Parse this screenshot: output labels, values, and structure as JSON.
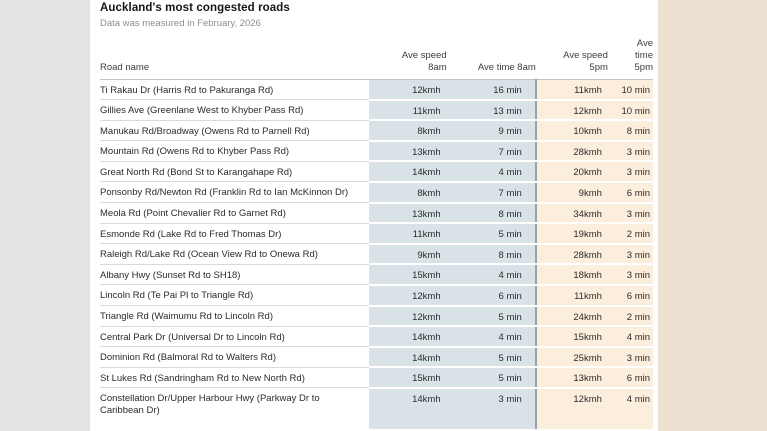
{
  "page": {
    "title": "Auckland's most congested roads",
    "subtitle": "Data was measured in February, 2026"
  },
  "headers": {
    "road": "Road name",
    "speed_8am": "Ave speed\n8am",
    "time_8am": "Ave time 8am",
    "speed_5pm": "Ave speed\n5pm",
    "time_5pm": "Ave\ntime\n5pm"
  },
  "colors": {
    "morning_column_bg": "#d9e3e7",
    "evening_column_bg": "#fbeedd",
    "page_left_bg": "#e4e3e1",
    "page_right_bg": "#ece0d0",
    "group_divider": "#96a4aa"
  },
  "chart_data": {
    "type": "table",
    "title": "Auckland's most congested roads",
    "subtitle": "Data was measured in February, 2026",
    "columns": [
      "Road name",
      "Ave speed 8am",
      "Ave time 8am",
      "Ave speed 5pm",
      "Ave time 5pm"
    ],
    "rows": [
      {
        "road": "Ti Rakau Dr (Harris Rd to Pakuranga Rd)",
        "speed_8am": "12kmh",
        "time_8am": "16 min",
        "speed_5pm": "11kmh",
        "time_5pm": "10 min"
      },
      {
        "road": "Gillies Ave (Greenlane West to Khyber Pass Rd)",
        "speed_8am": "11kmh",
        "time_8am": "13 min",
        "speed_5pm": "12kmh",
        "time_5pm": "10 min"
      },
      {
        "road": "Manukau Rd/Broadway (Owens Rd to Parnell Rd)",
        "speed_8am": "8kmh",
        "time_8am": "9 min",
        "speed_5pm": "10kmh",
        "time_5pm": "8 min"
      },
      {
        "road": "Mountain Rd (Owens Rd to Khyber Pass Rd)",
        "speed_8am": "13kmh",
        "time_8am": "7 min",
        "speed_5pm": "28kmh",
        "time_5pm": "3 min"
      },
      {
        "road": "Great North Rd (Bond St to Karangahape Rd)",
        "speed_8am": "14kmh",
        "time_8am": "4 min",
        "speed_5pm": "20kmh",
        "time_5pm": "3 min"
      },
      {
        "road": "Ponsonby Rd/Newton Rd (Franklin Rd to Ian McKinnon Dr)",
        "speed_8am": "8kmh",
        "time_8am": "7 min",
        "speed_5pm": "9kmh",
        "time_5pm": "6 min"
      },
      {
        "road": "Meola Rd (Point Chevalier Rd to Garnet Rd)",
        "speed_8am": "13kmh",
        "time_8am": "8 min",
        "speed_5pm": "34kmh",
        "time_5pm": "3 min"
      },
      {
        "road": "Esmonde Rd (Lake Rd to Fred Thomas Dr)",
        "speed_8am": "11kmh",
        "time_8am": "5 min",
        "speed_5pm": "19kmh",
        "time_5pm": "2 min"
      },
      {
        "road": "Raleigh Rd/Lake Rd (Ocean View Rd to Onewa Rd)",
        "speed_8am": "9kmh",
        "time_8am": "8 min",
        "speed_5pm": "28kmh",
        "time_5pm": "3 min"
      },
      {
        "road": "Albany Hwy (Sunset Rd to SH18)",
        "speed_8am": "15kmh",
        "time_8am": "4 min",
        "speed_5pm": "18kmh",
        "time_5pm": "3 min"
      },
      {
        "road": "Lincoln Rd (Te Pai Pl to Triangle Rd)",
        "speed_8am": "12kmh",
        "time_8am": "6 min",
        "speed_5pm": "11kmh",
        "time_5pm": "6 min"
      },
      {
        "road": "Triangle Rd (Waimumu Rd to Lincoln Rd)",
        "speed_8am": "12kmh",
        "time_8am": "5 min",
        "speed_5pm": "24kmh",
        "time_5pm": "2 min"
      },
      {
        "road": "Central Park Dr (Universal Dr to Lincoln Rd)",
        "speed_8am": "14kmh",
        "time_8am": "4 min",
        "speed_5pm": "15kmh",
        "time_5pm": "4 min"
      },
      {
        "road": "Dominion Rd (Balmoral Rd to Walters Rd)",
        "speed_8am": "14kmh",
        "time_8am": "5 min",
        "speed_5pm": "25kmh",
        "time_5pm": "3 min"
      },
      {
        "road": "St Lukes Rd (Sandringham Rd to New North Rd)",
        "speed_8am": "15kmh",
        "time_8am": "5 min",
        "speed_5pm": "13kmh",
        "time_5pm": "6 min"
      },
      {
        "road": "Constellation Dr/Upper Harbour Hwy (Parkway Dr to Caribbean Dr)",
        "speed_8am": "14kmh",
        "time_8am": "3 min",
        "speed_5pm": "12kmh",
        "time_5pm": "4 min"
      }
    ]
  }
}
